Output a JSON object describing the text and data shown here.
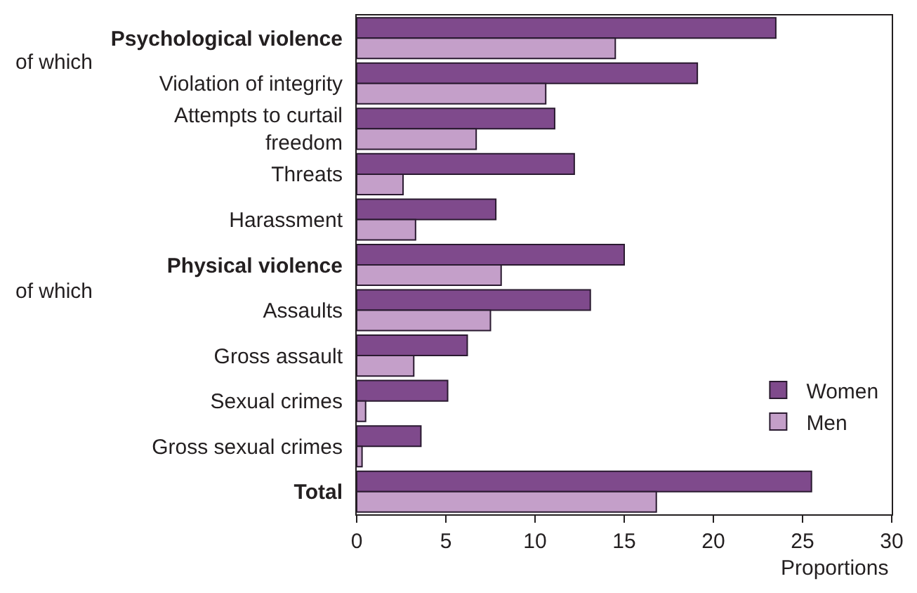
{
  "chart_data": {
    "type": "bar",
    "orientation": "horizontal",
    "xlabel": "Proportions",
    "categories": [
      "Psychological violence",
      "Violation of integrity",
      "Attempts to curtail freedom",
      "Threats",
      "Harassment",
      "Physical violence",
      "Assaults",
      "Gross assault",
      "Sexual crimes",
      "Gross sexual crimes",
      "Total"
    ],
    "series": [
      {
        "name": "Women",
        "color": "#7f4a8c",
        "values": [
          23.5,
          19.1,
          11.1,
          12.2,
          7.8,
          15.0,
          13.1,
          6.2,
          5.1,
          3.6,
          25.5
        ]
      },
      {
        "name": "Men",
        "color": "#c49fc9",
        "values": [
          14.5,
          10.6,
          6.7,
          2.6,
          3.3,
          8.1,
          7.5,
          3.2,
          0.5,
          0.3,
          16.8
        ]
      }
    ],
    "xlim": [
      0,
      30
    ],
    "xticks": [
      0,
      5,
      10,
      15,
      20,
      25,
      30
    ],
    "annotations": [
      "of which",
      "of which"
    ],
    "legend": "bottom right"
  }
}
